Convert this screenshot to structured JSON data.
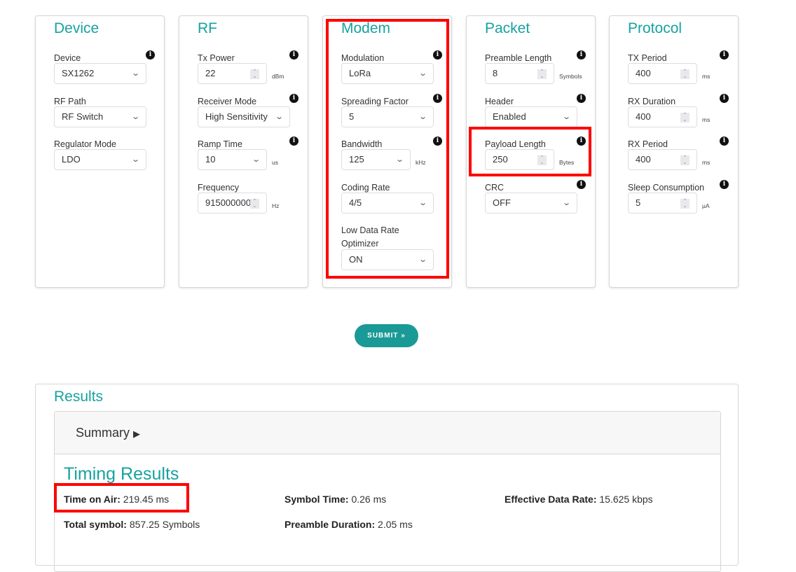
{
  "cards": [
    {
      "title": "Device",
      "fields": [
        {
          "label": "Device",
          "type": "select",
          "value": "SX1262"
        },
        {
          "label": "RF Path",
          "type": "select",
          "value": "RF Switch",
          "noinfo": true
        },
        {
          "label": "Regulator Mode",
          "type": "select",
          "value": "LDO",
          "noinfo": true
        }
      ]
    },
    {
      "title": "RF",
      "fields": [
        {
          "label": "Tx Power",
          "type": "number",
          "value": "22",
          "unit": "dBm"
        },
        {
          "label": "Receiver Mode",
          "type": "select",
          "value": "High Sensitivity",
          "wide": true
        },
        {
          "label": "Ramp Time",
          "type": "selectnarrow",
          "value": "10",
          "unit": "us"
        },
        {
          "label": "Frequency",
          "type": "number",
          "value": "915000000",
          "unit": "Hz",
          "noinfo": true
        }
      ]
    },
    {
      "title": "Modem",
      "fields": [
        {
          "label": "Modulation",
          "type": "select",
          "value": "LoRa"
        },
        {
          "label": "Spreading Factor",
          "type": "select",
          "value": "5"
        },
        {
          "label": "Bandwidth",
          "type": "selectnarrow",
          "value": "125",
          "unit": "kHz"
        },
        {
          "label": "Coding Rate",
          "type": "select",
          "value": "4/5",
          "noinfo": true
        },
        {
          "label": "Low Data Rate Optimizer",
          "type": "select",
          "value": "ON",
          "noinfo": true,
          "twoline": true
        }
      ]
    },
    {
      "title": "Packet",
      "fields": [
        {
          "label": "Preamble Length",
          "type": "number",
          "value": "8",
          "unit": "Symbols"
        },
        {
          "label": "Header",
          "type": "select",
          "value": "Enabled"
        },
        {
          "label": "Payload Length",
          "type": "number",
          "value": "250",
          "unit": "Bytes"
        },
        {
          "label": "CRC",
          "type": "select",
          "value": "OFF"
        }
      ]
    },
    {
      "title": "Protocol",
      "fields": [
        {
          "label": "TX Period",
          "type": "number",
          "value": "400",
          "unit": "ms"
        },
        {
          "label": "RX Duration",
          "type": "number",
          "value": "400",
          "unit": "ms"
        },
        {
          "label": "RX Period",
          "type": "number",
          "value": "400",
          "unit": "ms"
        },
        {
          "label": "Sleep Consumption",
          "type": "number",
          "value": "5",
          "unit": "µA"
        }
      ]
    }
  ],
  "submit_label": "SUBMIT »",
  "results": {
    "title": "Results",
    "summary_label": "Summary",
    "timing_title": "Timing Results",
    "items": [
      {
        "key": "Time on Air:",
        "value": "219.45 ms"
      },
      {
        "key": "Symbol Time:",
        "value": "0.26 ms"
      },
      {
        "key": "Effective Data Rate:",
        "value": "15.625 kbps"
      },
      {
        "key": "Total symbol:",
        "value": "857.25 Symbols"
      },
      {
        "key": "Preamble Duration:",
        "value": "2.05 ms"
      }
    ]
  },
  "colors": {
    "accent": "#17a2a0",
    "button": "#1a9a96",
    "highlight": "#ff0000"
  },
  "icons": {
    "info": "info-circle-icon",
    "chevron": "chevron-down-icon",
    "spinner": "number-spinner-icon",
    "expand": "caret-right-icon"
  }
}
